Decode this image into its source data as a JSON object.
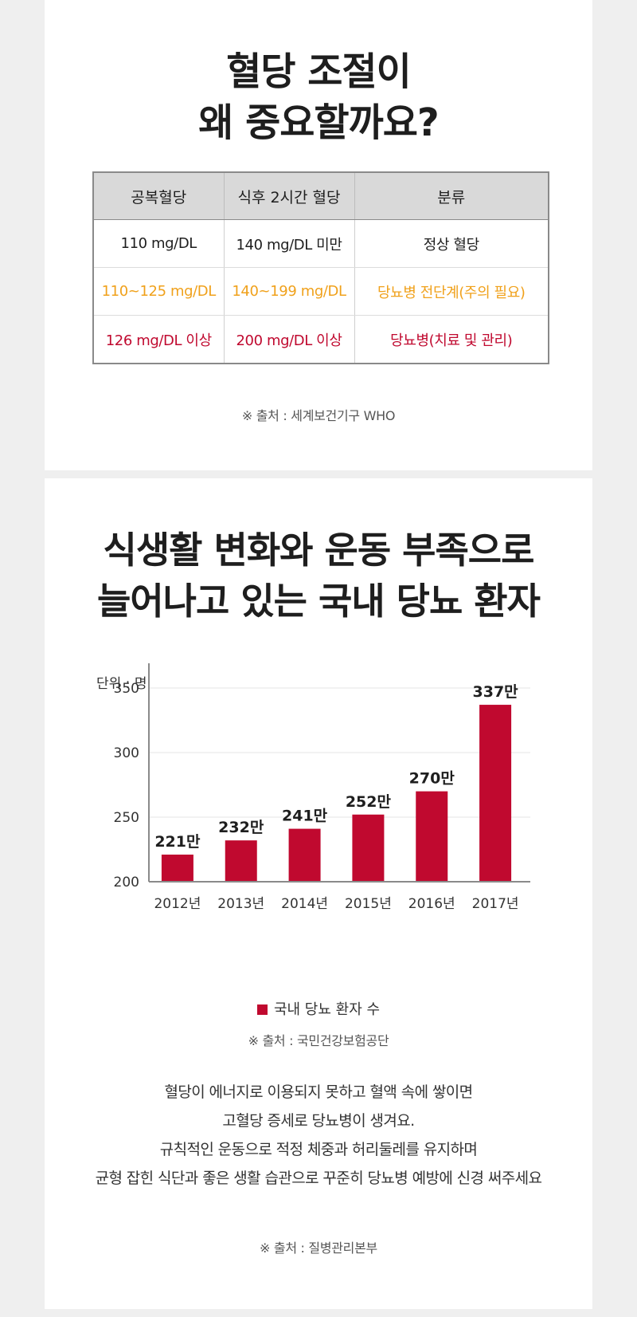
{
  "section1": {
    "title_lines": [
      "혈당 조절이",
      "왜 중요할까요?"
    ],
    "table": {
      "headers": [
        "공복혈당",
        "식후 2시간 혈당",
        "분류"
      ],
      "rows": [
        [
          "110 mg/DL",
          "140 mg/DL 미만",
          "정상 혈당"
        ],
        [
          "110~125 mg/DL",
          "140~199 mg/DL",
          "당뇨병 전단계(주의 필요)"
        ],
        [
          "126 mg/DL 이상",
          "200 mg/DL 이상",
          "당뇨병(치료 및 관리)"
        ]
      ]
    },
    "source": "※ 출처 : 세계보건기구 WHO"
  },
  "section2": {
    "title_lines": [
      "식생활 변화와 운동 부족으로",
      "늘어나고 있는 국내 당뇨 환자"
    ],
    "source": "※ 출처 : 국민건강보험공단",
    "body_lines": [
      "혈당이 에너지로 이용되지 못하고 혈액 속에 쌓이면",
      "고혈당 증세로 당뇨병이 생겨요.",
      "규칙적인 운동으로 적정 체중과 허리둘레를 유지하며",
      "균형 잡힌 식단과 좋은 생활 습관으로 꾸준히 당뇨병 예방에 신경 써주세요"
    ],
    "body_source": "※ 출처 : 질병관리본부"
  },
  "chart_data": {
    "type": "bar",
    "unit_label": "단위 : 명",
    "categories": [
      "2012년",
      "2013년",
      "2014년",
      "2015년",
      "2016년",
      "2017년"
    ],
    "series": [
      {
        "name": "국내 당뇨 환자 수",
        "values": [
          221,
          232,
          241,
          252,
          270,
          337
        ],
        "labels": [
          "221만",
          "232만",
          "241만",
          "252만",
          "270만",
          "337만"
        ],
        "color": "#c0092f"
      }
    ],
    "ylim": [
      200,
      350
    ],
    "yticks": [
      200,
      250,
      300,
      350
    ],
    "grid": true,
    "legend_position": "bottom"
  }
}
